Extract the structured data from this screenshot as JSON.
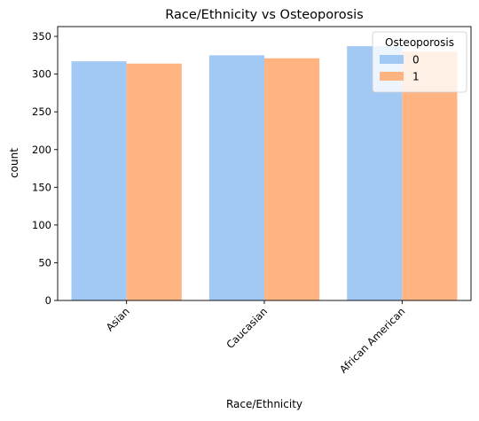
{
  "chart_data": {
    "type": "bar",
    "title": "Race/Ethnicity vs Osteoporosis",
    "xlabel": "Race/Ethnicity",
    "ylabel": "count",
    "categories": [
      "Asian",
      "Caucasian",
      "African American"
    ],
    "series": [
      {
        "name": "0",
        "values": [
          317,
          325,
          337
        ],
        "color": "#a1c9f4"
      },
      {
        "name": "1",
        "values": [
          314,
          321,
          330
        ],
        "color": "#ffb482"
      }
    ],
    "ylim": [
      0,
      363
    ],
    "yticks": [
      0,
      50,
      100,
      150,
      200,
      250,
      300,
      350
    ],
    "legend": {
      "title": "Osteoporosis",
      "placement": "top-right"
    },
    "grid": false
  }
}
